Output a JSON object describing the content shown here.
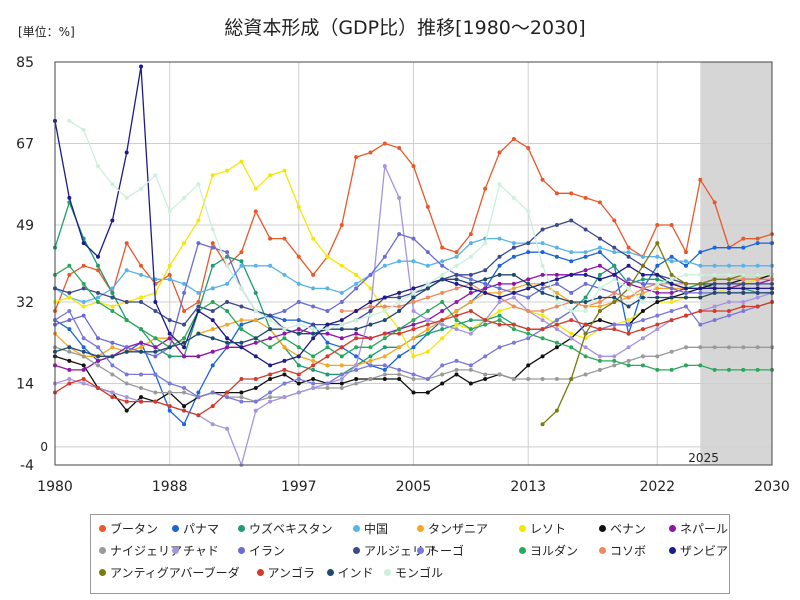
{
  "chart_data": {
    "type": "line",
    "title": "総資本形成（GDP比）推移[1980～2030]",
    "unit_label": "[単位：%]",
    "ylim": [
      -4,
      85
    ],
    "xlim": [
      1980,
      2030
    ],
    "y_ticks": [
      85,
      67,
      49,
      32,
      14,
      -4
    ],
    "y_zero_label": "0",
    "x_ticks": [
      1980,
      1988,
      1997,
      2005,
      2013,
      2022,
      2030
    ],
    "forecast_start": 2025,
    "forecast_label": "2025",
    "grid": true,
    "legend_position": "bottom",
    "series": [
      {
        "name": "ブータン",
        "color": "#e8582a",
        "start": 1980,
        "values": [
          30,
          38,
          40,
          39,
          34,
          45,
          40,
          36,
          38,
          30,
          32,
          45,
          40,
          43,
          52,
          46,
          46,
          42,
          38,
          42,
          49,
          64,
          65,
          67,
          66,
          62,
          53,
          44,
          43,
          47,
          57,
          65,
          68,
          66,
          59,
          56,
          56,
          55,
          54,
          50,
          44,
          42,
          49,
          49,
          43,
          59,
          54,
          44,
          46,
          46,
          47
        ]
      },
      {
        "name": "パナマ",
        "color": "#1c64d8",
        "start": 1980,
        "values": [
          28,
          26,
          22,
          19,
          20,
          21,
          23,
          16,
          8,
          5,
          12,
          18,
          22,
          27,
          28,
          29,
          28,
          28,
          27,
          23,
          22,
          20,
          18,
          17,
          20,
          22,
          25,
          28,
          30,
          32,
          35,
          40,
          42,
          43,
          43,
          42,
          41,
          42,
          43,
          40,
          25,
          35,
          40,
          42,
          40,
          43,
          44,
          44,
          44,
          45,
          45
        ]
      },
      {
        "name": "ウズベキスタン",
        "color": "#1e9e6e",
        "start": 1980,
        "values": [
          44,
          54,
          46,
          40,
          34,
          28,
          26,
          22,
          20,
          20,
          30,
          40,
          42,
          41,
          34,
          26,
          22,
          18,
          17,
          16,
          16,
          18,
          20,
          22,
          22,
          24,
          25,
          26,
          27,
          28,
          28,
          29,
          27,
          26,
          26,
          28,
          30,
          33,
          38,
          40,
          36,
          37,
          37,
          36,
          35,
          36,
          35,
          35,
          35,
          34,
          34
        ]
      },
      {
        "name": "中国",
        "color": "#58b4e8",
        "start": 1980,
        "values": [
          35,
          33,
          32,
          33,
          35,
          39,
          38,
          37,
          37,
          36,
          34,
          35,
          36,
          40,
          40,
          40,
          38,
          36,
          35,
          35,
          34,
          36,
          38,
          40,
          41,
          41,
          40,
          41,
          42,
          45,
          46,
          46,
          45,
          45,
          45,
          44,
          43,
          43,
          44,
          43,
          43,
          42,
          42,
          41,
          41,
          40,
          40,
          40,
          40,
          40,
          40
        ]
      },
      {
        "name": "タンザニア",
        "color": "#f5a623",
        "start": 1980,
        "values": [
          25,
          22,
          20,
          20,
          22,
          21,
          22,
          24,
          24,
          23,
          25,
          26,
          27,
          28,
          28,
          26,
          22,
          20,
          19,
          18,
          18,
          18,
          19,
          20,
          22,
          24,
          26,
          28,
          30,
          32,
          34,
          34,
          35,
          36,
          36,
          34,
          32,
          31,
          31,
          32,
          33,
          34,
          35,
          35,
          35,
          35,
          35,
          35,
          35,
          35,
          35
        ]
      },
      {
        "name": "レソト",
        "color": "#f5e60a",
        "start": 1980,
        "values": [
          32,
          33,
          31,
          32,
          31,
          32,
          33,
          34,
          40,
          45,
          50,
          60,
          61,
          63,
          57,
          60,
          61,
          53,
          46,
          42,
          40,
          38,
          35,
          30,
          26,
          20,
          21,
          24,
          27,
          26,
          28,
          30,
          31,
          30,
          29,
          27,
          25,
          24,
          26,
          27,
          28,
          30,
          32,
          32,
          33,
          33,
          34,
          35,
          36,
          37,
          38
        ]
      },
      {
        "name": "ベナン",
        "color": "#111111",
        "start": 1980,
        "values": [
          20,
          19,
          18,
          13,
          12,
          8,
          11,
          10,
          12,
          9,
          11,
          12,
          12,
          12,
          13,
          15,
          16,
          14,
          15,
          14,
          14,
          15,
          15,
          15,
          15,
          12,
          12,
          14,
          16,
          14,
          15,
          16,
          15,
          18,
          20,
          22,
          24,
          27,
          28,
          27,
          27,
          30,
          32,
          33,
          34,
          35,
          36,
          36,
          37,
          37,
          38
        ]
      },
      {
        "name": "ネパール",
        "color": "#8e15a8",
        "start": 1980,
        "values": [
          18,
          17,
          17,
          19,
          20,
          22,
          23,
          22,
          24,
          20,
          20,
          21,
          22,
          22,
          23,
          24,
          25,
          26,
          25,
          25,
          24,
          25,
          24,
          25,
          26,
          27,
          28,
          30,
          32,
          34,
          35,
          36,
          36,
          37,
          38,
          38,
          38,
          39,
          40,
          38,
          36,
          35,
          34,
          34,
          35,
          35,
          35,
          35,
          36,
          36,
          37
        ]
      },
      {
        "name": "ナイジェリア",
        "color": "#9a9a9a",
        "start": 1980,
        "values": [
          22,
          21,
          20,
          18,
          16,
          14,
          13,
          12,
          12,
          12,
          11,
          12,
          11,
          11,
          10,
          11,
          11,
          12,
          13,
          13,
          13,
          14,
          15,
          16,
          16,
          15,
          15,
          16,
          17,
          17,
          16,
          16,
          15,
          15,
          15,
          15,
          15,
          16,
          17,
          18,
          19,
          20,
          20,
          21,
          22,
          22,
          22,
          22,
          22,
          22,
          22
        ]
      },
      {
        "name": "チャド",
        "color": "#a694e0",
        "start": 1980,
        "values": [
          14,
          15,
          14,
          13,
          12,
          11,
          10,
          10,
          9,
          8,
          7,
          5,
          4,
          -4,
          8,
          10,
          11,
          12,
          13,
          14,
          15,
          18,
          30,
          62,
          55,
          30,
          28,
          27,
          26,
          25,
          28,
          32,
          33,
          30,
          28,
          26,
          24,
          22,
          20,
          20,
          22,
          24,
          26,
          28,
          29,
          30,
          31,
          32,
          32,
          33,
          34
        ]
      },
      {
        "name": "イラン",
        "color": "#6a6cd6",
        "start": 1980,
        "values": [
          27,
          28,
          29,
          24,
          23,
          22,
          21,
          20,
          22,
          34,
          45,
          44,
          43,
          35,
          30,
          29,
          30,
          32,
          31,
          30,
          32,
          35,
          38,
          42,
          47,
          46,
          43,
          40,
          38,
          37,
          36,
          35,
          34,
          33,
          35,
          36,
          34,
          36,
          35,
          34,
          37,
          36,
          36,
          35,
          34,
          34,
          34,
          34,
          34,
          34,
          34
        ]
      },
      {
        "name": "アルジェリア",
        "color": "#3c4a8c",
        "start": 1980,
        "values": [
          35,
          34,
          35,
          34,
          33,
          32,
          32,
          30,
          28,
          27,
          31,
          30,
          32,
          31,
          30,
          29,
          26,
          25,
          27,
          27,
          27,
          28,
          30,
          33,
          33,
          34,
          35,
          37,
          38,
          38,
          39,
          42,
          44,
          45,
          48,
          49,
          50,
          48,
          46,
          44,
          42,
          40,
          38,
          37,
          36,
          36,
          36,
          36,
          36,
          36,
          36
        ]
      },
      {
        "name": "トーゴ",
        "color": "#7a78d8",
        "start": 1980,
        "values": [
          28,
          30,
          24,
          22,
          18,
          16,
          16,
          16,
          14,
          13,
          11,
          12,
          11,
          10,
          10,
          12,
          14,
          15,
          14,
          14,
          16,
          17,
          18,
          18,
          17,
          16,
          15,
          18,
          19,
          18,
          20,
          22,
          23,
          24,
          26,
          28,
          30,
          25,
          26,
          27,
          27,
          28,
          29,
          30,
          31,
          27,
          28,
          29,
          30,
          31,
          32
        ]
      },
      {
        "name": "ヨルダン",
        "color": "#2aa85a",
        "start": 1980,
        "values": [
          38,
          40,
          36,
          32,
          30,
          28,
          26,
          24,
          22,
          24,
          30,
          32,
          30,
          26,
          24,
          22,
          24,
          22,
          20,
          22,
          20,
          22,
          22,
          24,
          26,
          28,
          30,
          32,
          28,
          26,
          27,
          28,
          26,
          25,
          24,
          23,
          22,
          20,
          19,
          19,
          18,
          18,
          17,
          17,
          18,
          18,
          17,
          17,
          17,
          17,
          17
        ]
      },
      {
        "name": "コソボ",
        "color": "#ee8a5e",
        "start": 1980,
        "values": [
          null,
          null,
          null,
          null,
          null,
          null,
          null,
          null,
          null,
          null,
          null,
          null,
          null,
          null,
          null,
          null,
          null,
          null,
          null,
          null,
          30,
          30,
          31,
          31,
          31,
          32,
          33,
          34,
          35,
          36,
          34,
          33,
          31,
          30,
          30,
          31,
          32,
          31,
          32,
          34,
          33,
          35,
          36,
          36,
          36,
          36,
          37,
          37,
          37,
          37,
          37
        ]
      },
      {
        "name": "ザンビア",
        "color": "#1c1c8a",
        "start": 1980,
        "values": [
          72,
          55,
          45,
          42,
          50,
          65,
          84,
          32,
          25,
          22,
          30,
          28,
          24,
          22,
          20,
          18,
          19,
          20,
          24,
          27,
          28,
          30,
          32,
          33,
          34,
          35,
          36,
          37,
          36,
          35,
          34,
          33,
          34,
          35,
          36,
          37,
          38,
          38,
          37,
          38,
          40,
          38,
          38,
          36,
          35,
          35,
          35,
          35,
          35,
          35,
          35
        ]
      },
      {
        "name": "アンティグアバーブーダ",
        "color": "#7a7a12",
        "start": 1980,
        "values": [
          null,
          null,
          null,
          null,
          null,
          null,
          null,
          null,
          null,
          null,
          null,
          null,
          null,
          null,
          null,
          null,
          null,
          null,
          null,
          null,
          null,
          null,
          null,
          null,
          null,
          null,
          null,
          null,
          null,
          null,
          null,
          null,
          null,
          null,
          5,
          8,
          15,
          25,
          30,
          32,
          35,
          40,
          45,
          38,
          36,
          36,
          37,
          37,
          38,
          38,
          38
        ]
      },
      {
        "name": "アンゴラ",
        "color": "#d43a2a",
        "start": 1980,
        "values": [
          12,
          14,
          15,
          13,
          11,
          10,
          10,
          10,
          9,
          8,
          7,
          9,
          12,
          15,
          15,
          16,
          17,
          16,
          18,
          20,
          22,
          24,
          24,
          25,
          25,
          26,
          27,
          28,
          29,
          30,
          28,
          27,
          27,
          26,
          26,
          27,
          28,
          27,
          26,
          26,
          25,
          26,
          27,
          28,
          29,
          30,
          30,
          30,
          31,
          31,
          32
        ]
      },
      {
        "name": "インド",
        "color": "#1e4a6e",
        "start": 1980,
        "values": [
          21,
          22,
          21,
          20,
          20,
          21,
          21,
          21,
          22,
          23,
          25,
          24,
          23,
          23,
          24,
          26,
          26,
          25,
          25,
          26,
          26,
          26,
          27,
          28,
          30,
          33,
          35,
          37,
          37,
          36,
          37,
          38,
          38,
          36,
          34,
          33,
          32,
          32,
          33,
          33,
          31,
          33,
          33,
          33,
          33,
          33,
          34,
          34,
          34,
          34,
          34
        ]
      },
      {
        "name": "モンゴル",
        "color": "#ccf0dc",
        "start": 1980,
        "values": [
          null,
          72,
          70,
          62,
          58,
          55,
          57,
          60,
          52,
          55,
          58,
          48,
          40,
          35,
          30,
          28,
          26,
          27,
          26,
          26,
          27,
          28,
          29,
          30,
          32,
          34,
          36,
          38,
          40,
          42,
          45,
          58,
          55,
          52,
          40,
          32,
          30,
          30,
          35,
          37,
          35,
          32,
          36,
          37,
          38,
          38,
          38,
          38,
          38,
          38,
          38
        ]
      }
    ]
  }
}
